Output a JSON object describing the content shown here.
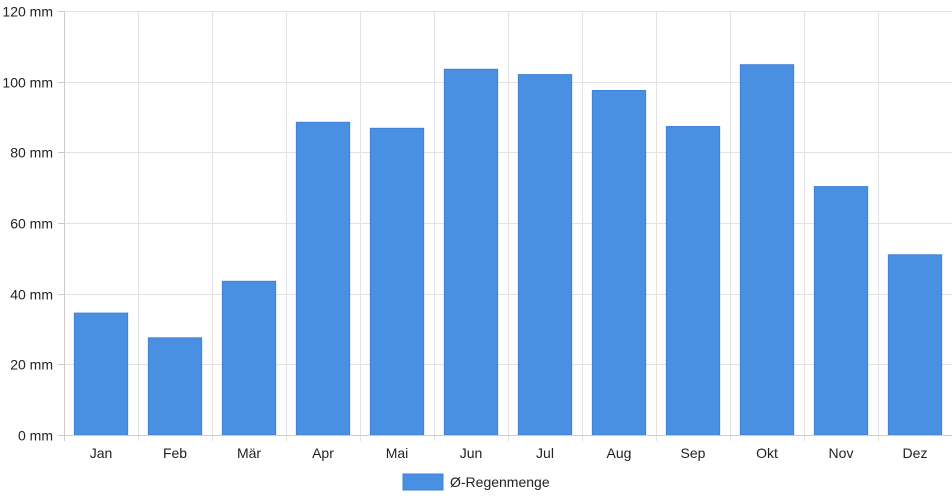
{
  "chart_data": {
    "type": "bar",
    "categories": [
      "Jan",
      "Feb",
      "Mär",
      "Apr",
      "Mai",
      "Jun",
      "Jul",
      "Aug",
      "Sep",
      "Okt",
      "Nov",
      "Dez"
    ],
    "series": [
      {
        "name": "Ø-Regenmenge",
        "values": [
          34.5,
          27.5,
          43.5,
          88.5,
          86.8,
          103.5,
          102.0,
          97.5,
          87.3,
          104.8,
          70.3,
          51.0
        ],
        "color": "#4a90e2"
      }
    ],
    "y_ticks": [
      "0 mm",
      "20 mm",
      "40 mm",
      "60 mm",
      "80 mm",
      "100 mm",
      "120 mm"
    ],
    "y_tick_values": [
      0,
      20,
      40,
      60,
      80,
      100,
      120
    ],
    "ylim": [
      0,
      120
    ],
    "grid": true,
    "legend_position": "bottom",
    "title": "",
    "xlabel": "",
    "ylabel": ""
  }
}
